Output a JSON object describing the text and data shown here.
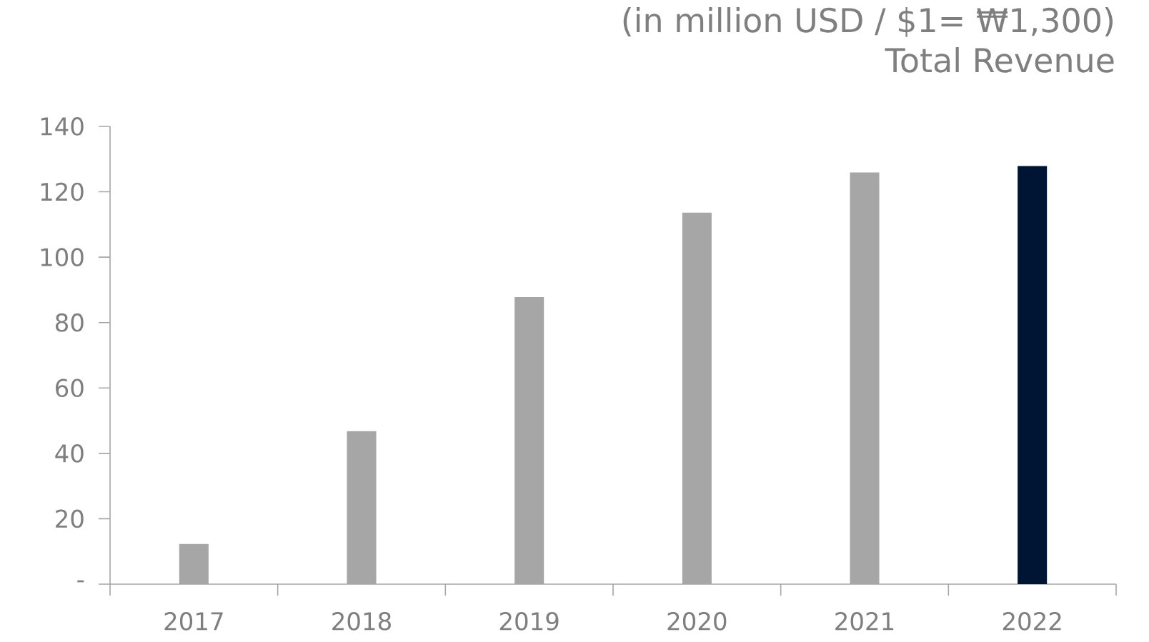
{
  "chart_data": {
    "type": "bar",
    "title": "Total Revenue",
    "subtitle": "(in million USD / $1= ₩1,300)",
    "categories": [
      "2017",
      "2018",
      "2019",
      "2020",
      "2021",
      "2022"
    ],
    "values": [
      12.3,
      46.8,
      87.8,
      113.6,
      125.9,
      127.9
    ],
    "colors": [
      "#a6a6a6",
      "#a6a6a6",
      "#a6a6a6",
      "#a6a6a6",
      "#a6a6a6",
      "#001433"
    ],
    "ylim": [
      0,
      140
    ],
    "yticks": [
      {
        "value": 0,
        "label": "-"
      },
      20,
      40,
      60,
      80,
      100,
      120,
      140
    ]
  }
}
